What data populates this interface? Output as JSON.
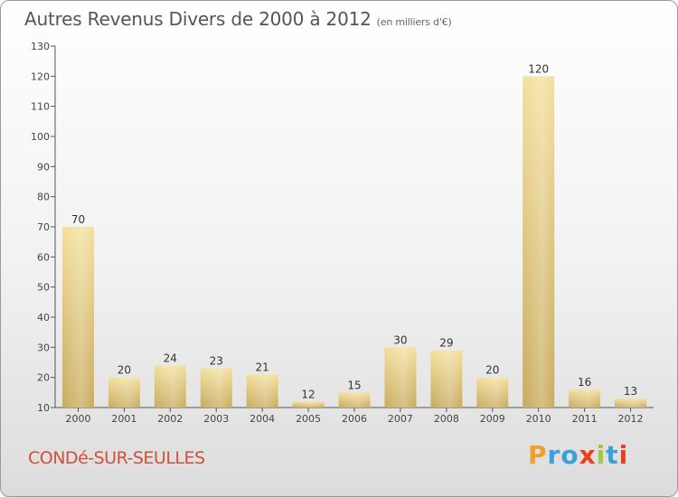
{
  "header": {
    "title": "Autres Revenus Divers de 2000 à 2012",
    "subtitle": "(en milliers d'€)"
  },
  "footer": {
    "commune": "CONDé-SUR-SEULLES",
    "logo_letters": [
      "P",
      "r",
      "o",
      "x",
      "i",
      "t",
      "i"
    ],
    "logo_colors": [
      "#f0a030",
      "#3aa0dc",
      "#3aa0dc",
      "#e8401c",
      "#a0c840",
      "#3aa0dc",
      "#e8401c"
    ]
  },
  "colors": {
    "bar_light": "#f3df9c",
    "bar_dark": "#c8ab5e",
    "axis": "#555555"
  },
  "chart_data": {
    "type": "bar",
    "title": "Autres Revenus Divers de 2000 à 2012",
    "subtitle": "(en milliers d'€)",
    "categories": [
      "2000",
      "2001",
      "2002",
      "2003",
      "2004",
      "2005",
      "2006",
      "2007",
      "2008",
      "2009",
      "2010",
      "2011",
      "2012"
    ],
    "values": [
      70,
      20,
      24,
      23,
      21,
      12,
      15,
      30,
      29,
      20,
      120,
      16,
      13
    ],
    "ylim": [
      10,
      130
    ],
    "yticks": [
      10,
      20,
      30,
      40,
      50,
      60,
      70,
      80,
      90,
      100,
      110,
      120,
      130
    ],
    "grid": false
  }
}
